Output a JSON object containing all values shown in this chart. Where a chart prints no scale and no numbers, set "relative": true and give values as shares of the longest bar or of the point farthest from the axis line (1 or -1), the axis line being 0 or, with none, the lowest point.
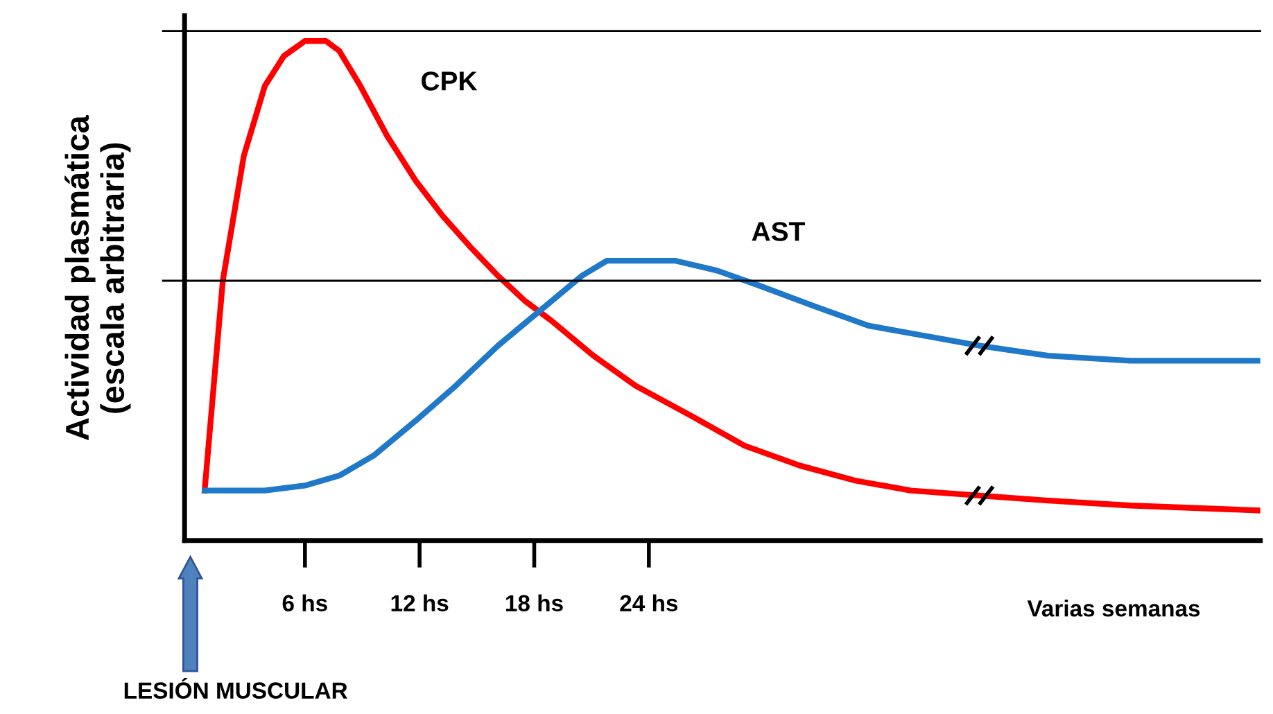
{
  "chart_data": {
    "type": "line",
    "ylabel": "Actividad plasmática\n(escala arbitraria)",
    "relative": true,
    "xlim": [
      -0.3,
      56
    ],
    "xticks": [
      {
        "value": 6,
        "label": "6 hs"
      },
      {
        "value": 12,
        "label": "12 hs"
      },
      {
        "value": 18,
        "label": "18 hs"
      },
      {
        "value": 24,
        "label": "24 hs"
      }
    ],
    "tick_labels": "x",
    "grid": false,
    "legend": false,
    "marker": "none",
    "line_style": "solid",
    "ref_lines": [
      {
        "axis": "y",
        "value": 1.02,
        "color": "#000000"
      },
      {
        "axis": "y",
        "value": 0.52,
        "color": "#000000"
      }
    ],
    "annotations": [
      "Varias semanas",
      "LESIÓN MUSCULAR"
    ],
    "series": [
      {
        "name": "CPK",
        "color": "#ff0000",
        "x": [
          0.75,
          1.7,
          2.8,
          3.9,
          4.9,
          6.0,
          7.1,
          7.8,
          8.9,
          10.3,
          11.8,
          13.2,
          14.6,
          16.1,
          17.5,
          18.9,
          21.1,
          23.3,
          26.2,
          29.0,
          31.9,
          34.8,
          37.7,
          41.3,
          44.9,
          49.2,
          56.0
        ],
        "values": [
          0.1,
          0.52,
          0.77,
          0.91,
          0.97,
          1.0,
          1.0,
          0.98,
          0.91,
          0.81,
          0.72,
          0.65,
          0.59,
          0.53,
          0.48,
          0.44,
          0.37,
          0.31,
          0.25,
          0.19,
          0.15,
          0.12,
          0.1,
          0.09,
          0.08,
          0.07,
          0.06
        ]
      },
      {
        "name": "AST",
        "color": "#1f78c8",
        "x": [
          0.75,
          3.9,
          6.0,
          7.8,
          9.6,
          11.8,
          13.9,
          16.1,
          18.3,
          20.5,
          21.8,
          23.3,
          25.4,
          27.6,
          29.8,
          32.6,
          35.5,
          38.4,
          41.3,
          44.9,
          49.2,
          56.0
        ],
        "values": [
          0.1,
          0.1,
          0.11,
          0.13,
          0.17,
          0.24,
          0.31,
          0.39,
          0.46,
          0.53,
          0.56,
          0.56,
          0.56,
          0.54,
          0.51,
          0.47,
          0.43,
          0.41,
          0.39,
          0.37,
          0.36,
          0.36
        ]
      }
    ]
  }
}
